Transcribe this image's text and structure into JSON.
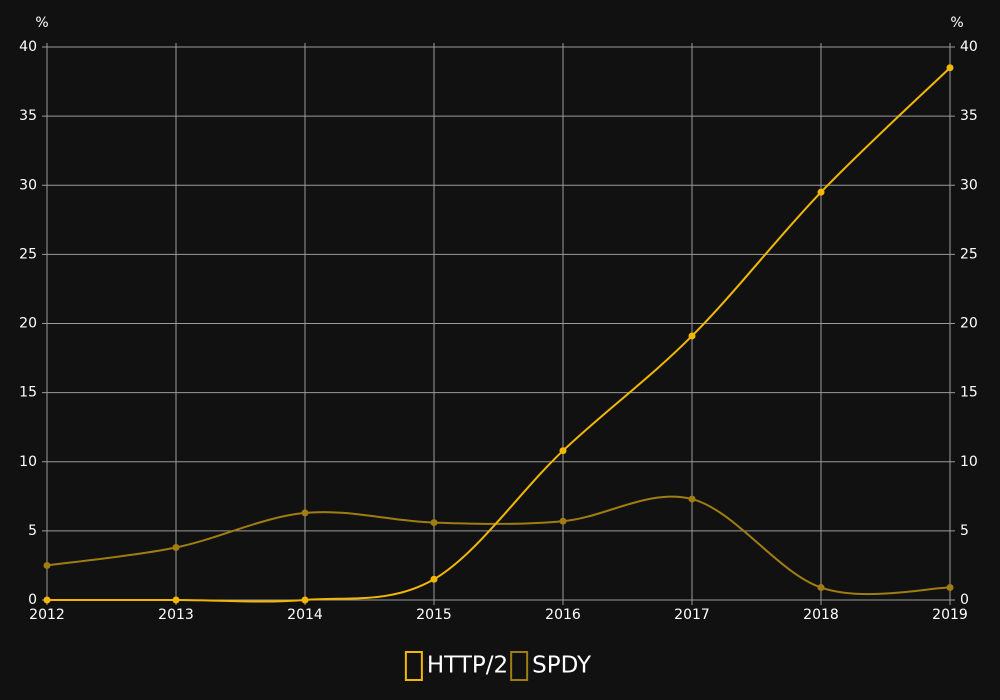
{
  "chart_data": {
    "type": "line",
    "categories": [
      "2012",
      "2013",
      "2014",
      "2015",
      "2016",
      "2017",
      "2018",
      "2019"
    ],
    "series": [
      {
        "name": "HTTP/2",
        "color": "#f2b705",
        "values": [
          0,
          0,
          0,
          1.5,
          10.8,
          19.1,
          29.5,
          38.5
        ]
      },
      {
        "name": "SPDY",
        "color": "#a07d12",
        "values": [
          2.5,
          3.8,
          6.3,
          5.6,
          5.7,
          7.3,
          0.9,
          0.9
        ]
      }
    ],
    "y_unit": "%",
    "y2_unit": "%",
    "ylim": [
      0,
      40
    ],
    "yticks": [
      0,
      5,
      10,
      15,
      20,
      25,
      30,
      35,
      40
    ],
    "y2lim": [
      0,
      40
    ],
    "y2ticks": [
      0,
      5,
      10,
      15,
      20,
      25,
      30,
      35,
      40
    ],
    "grid": true,
    "legend": "bottom"
  }
}
